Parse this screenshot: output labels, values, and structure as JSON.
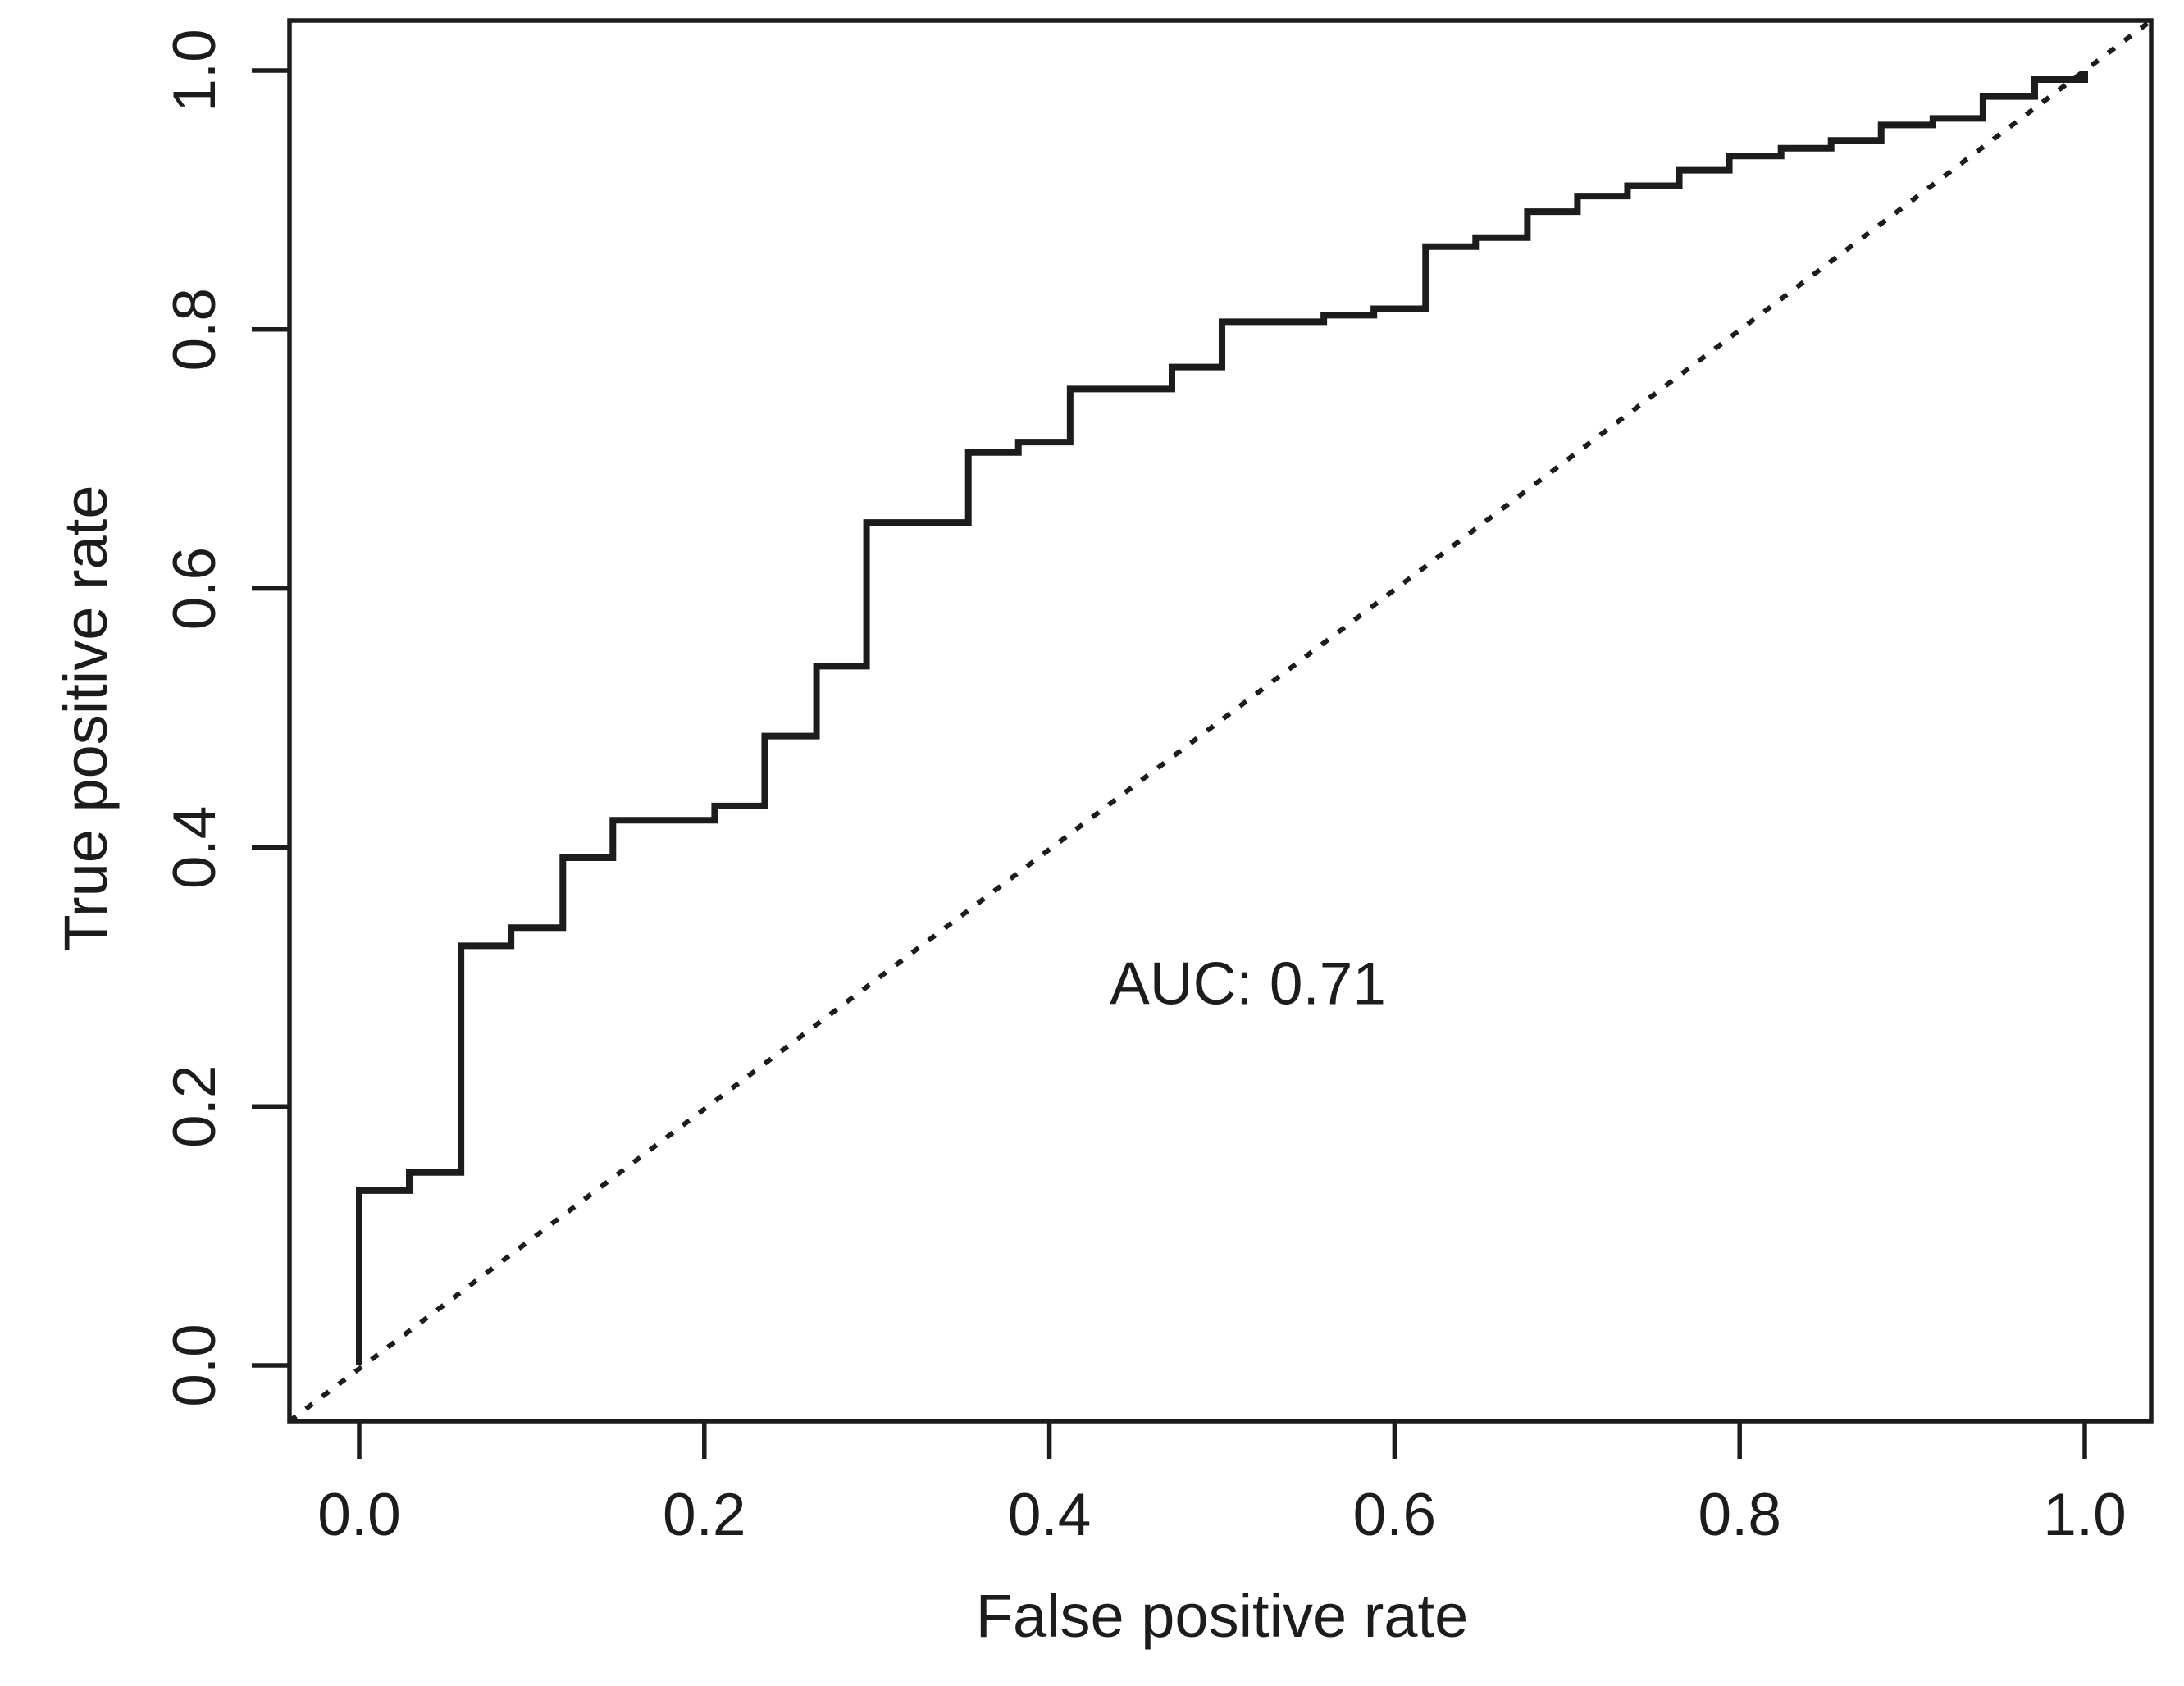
{
  "chart_data": {
    "type": "line",
    "subtype": "roc_step_curve",
    "title": "",
    "xlabel": "False positive rate",
    "ylabel": "True positive rate",
    "xlim": [
      0.0,
      1.0
    ],
    "ylim": [
      0.0,
      1.0
    ],
    "grid": "off",
    "legend": "none",
    "background_color": "#ffffff",
    "axis_color": "#1c1c1c",
    "x_ticks": [
      "0.0",
      "0.2",
      "0.4",
      "0.6",
      "0.8",
      "1.0"
    ],
    "y_ticks": [
      "0.0",
      "0.2",
      "0.4",
      "0.6",
      "0.8",
      "1.0"
    ],
    "x_tick_values": [
      0.0,
      0.2,
      0.4,
      0.6,
      0.8,
      1.0
    ],
    "y_tick_values": [
      0.0,
      0.2,
      0.4,
      0.6,
      0.8,
      1.0
    ],
    "annotation": {
      "text": "AUC: 0.71",
      "x": 0.515,
      "y": 0.296
    },
    "auc": 0.71,
    "series": [
      {
        "name": "ROC curve",
        "style": "solid-step",
        "color": "#1c1c1c",
        "start": [
          0.0,
          0.0
        ],
        "points": [
          [
            0.0,
            0.135
          ],
          [
            0.029,
            0.149
          ],
          [
            0.059,
            0.324
          ],
          [
            0.088,
            0.338
          ],
          [
            0.118,
            0.392
          ],
          [
            0.147,
            0.421
          ],
          [
            0.206,
            0.432
          ],
          [
            0.235,
            0.486
          ],
          [
            0.265,
            0.54
          ],
          [
            0.294,
            0.651
          ],
          [
            0.353,
            0.705
          ],
          [
            0.382,
            0.713
          ],
          [
            0.412,
            0.754
          ],
          [
            0.471,
            0.771
          ],
          [
            0.5,
            0.806
          ],
          [
            0.559,
            0.811
          ],
          [
            0.588,
            0.816
          ],
          [
            0.618,
            0.864
          ],
          [
            0.647,
            0.871
          ],
          [
            0.677,
            0.891
          ],
          [
            0.706,
            0.903
          ],
          [
            0.735,
            0.911
          ],
          [
            0.765,
            0.923
          ],
          [
            0.794,
            0.934
          ],
          [
            0.824,
            0.94
          ],
          [
            0.853,
            0.946
          ],
          [
            0.882,
            0.958
          ],
          [
            0.912,
            0.963
          ],
          [
            0.941,
            0.98
          ],
          [
            0.971,
            0.993
          ],
          [
            1.0,
            1.0
          ]
        ]
      },
      {
        "name": "chance diagonal",
        "style": "dotted",
        "color": "#1c1c1c",
        "from": [
          0.0,
          0.0
        ],
        "to": [
          1.0,
          1.0
        ]
      }
    ]
  }
}
